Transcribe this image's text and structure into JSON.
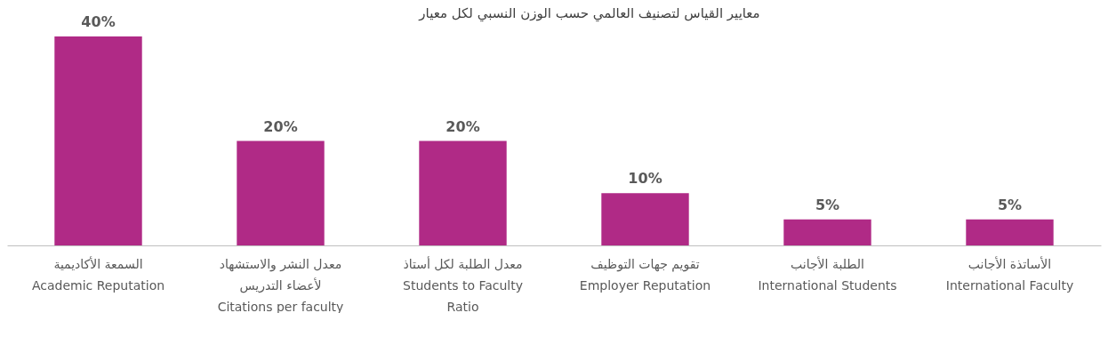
{
  "chart_data": {
    "type": "bar",
    "title": "معايير القياس لتصنيف العالمي حسب الوزن النسبي لكل معيار",
    "categories": [
      "السمعة الأكاديمية\nAcademic Reputation",
      "معدل النشر والاستشهاد\nلأعضاء التدريس\nCitations per faculty",
      "معدل الطلبة لكل أستاذ\nStudents to Faculty\nRatio",
      "تقويم جهات التوظيف\nEmployer Reputation",
      "الطلبة الأجانب\nInternational Students",
      "الأساتذة الأجانب\nInternational Faculty"
    ],
    "values": [
      40,
      20,
      20,
      10,
      5,
      5
    ],
    "value_labels": [
      "40%",
      "20%",
      "20%",
      "10%",
      "5%",
      "5%"
    ],
    "color": "#b02a86"
  }
}
